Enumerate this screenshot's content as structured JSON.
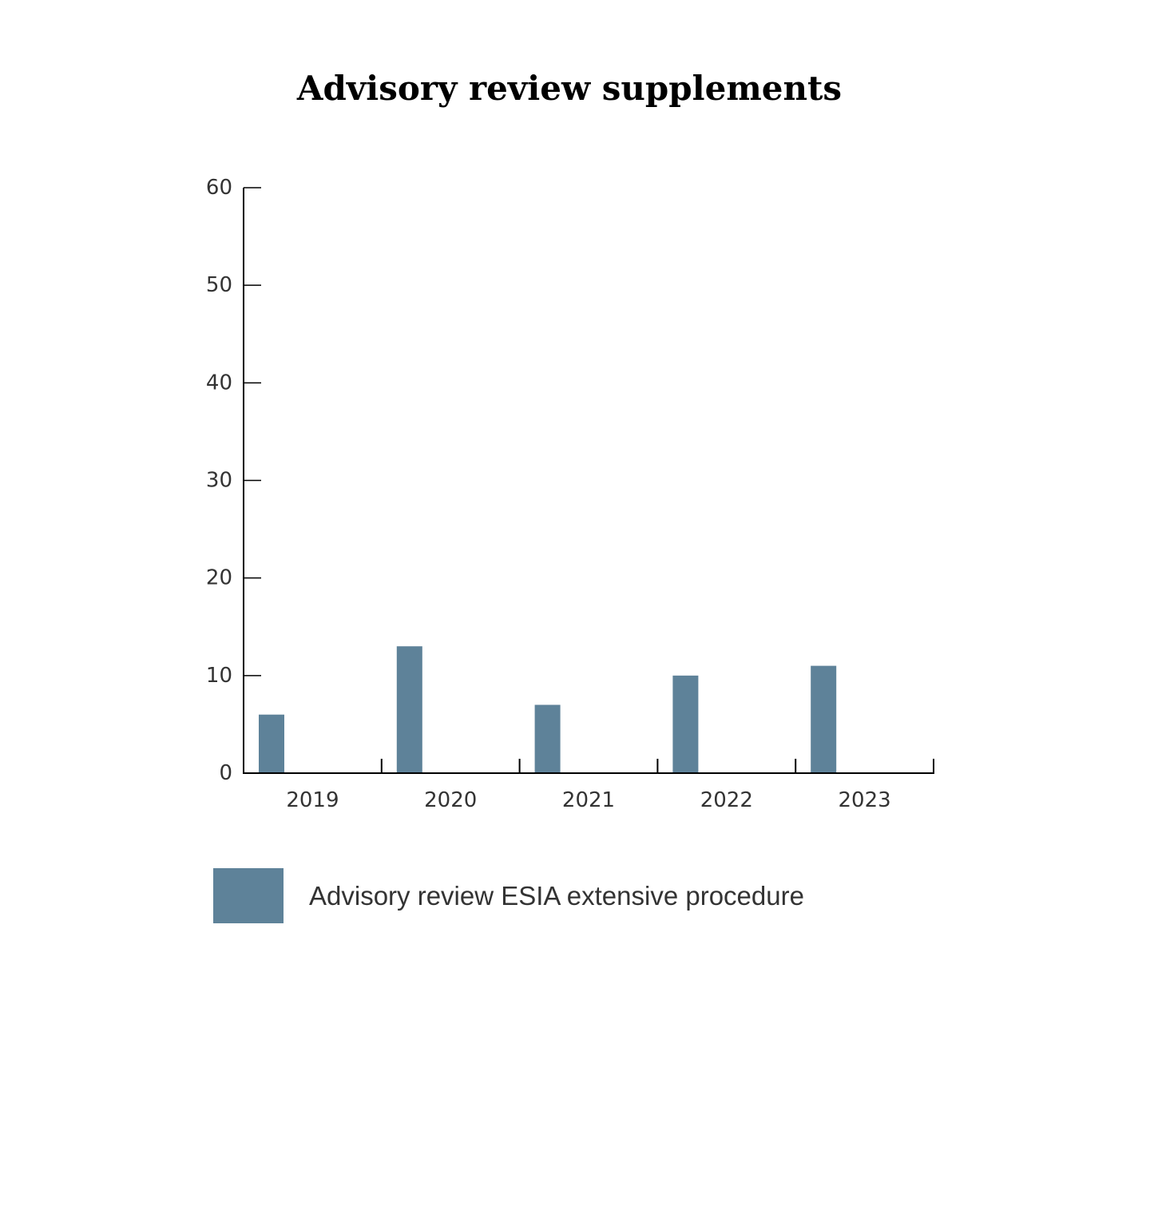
{
  "chart_data": {
    "type": "bar",
    "title": "Advisory review supplements",
    "categories": [
      "2019",
      "2020",
      "2021",
      "2022",
      "2023"
    ],
    "series": [
      {
        "name": "Advisory review ESIA extensive procedure",
        "values": [
          6,
          13,
          7,
          10,
          11
        ],
        "color": "#5e8299"
      }
    ],
    "xlabel": "",
    "ylabel": "",
    "ylim": [
      0,
      60
    ],
    "yticks": [
      "0",
      "10",
      "20",
      "30",
      "40",
      "50",
      "60"
    ],
    "grid": false,
    "legend_position": "bottom-left"
  }
}
